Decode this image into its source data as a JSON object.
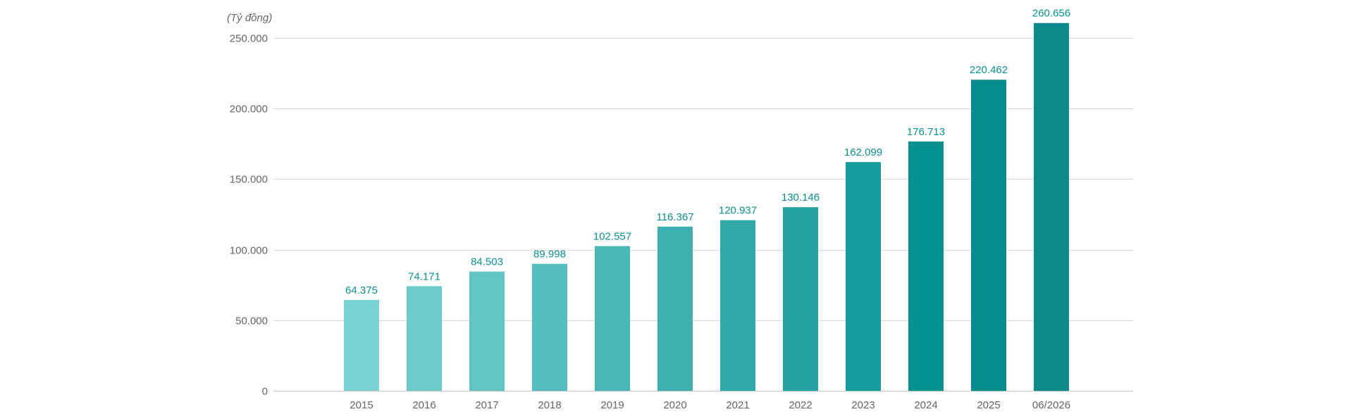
{
  "chart_data": {
    "type": "bar",
    "unit_label": "(Tỷ đồng)",
    "categories": [
      "2015",
      "2016",
      "2017",
      "2018",
      "2019",
      "2020",
      "2021",
      "2022",
      "2023",
      "2024",
      "2025",
      "06/2026"
    ],
    "values": [
      64375,
      74171,
      84503,
      89998,
      102557,
      116367,
      120937,
      130146,
      162099,
      176713,
      220462,
      260656
    ],
    "data_labels": [
      "64.375",
      "74.171",
      "84.503",
      "89.998",
      "102.557",
      "116.367",
      "120.937",
      "130.146",
      "162.099",
      "176.713",
      "220.462",
      "260.656"
    ],
    "yticks": [
      0,
      50000,
      100000,
      150000,
      200000,
      250000
    ],
    "ytick_labels": [
      "0",
      "50.000",
      "100.000",
      "150.000",
      "200.000",
      "250.000"
    ],
    "ylim": [
      0,
      262000
    ],
    "grid": true,
    "legend": "none",
    "colors": {
      "bars": [
        "#7ad1d1",
        "#6ecbcb",
        "#62c4c4",
        "#55bdbd",
        "#4ab7b7",
        "#3eb0b0",
        "#30a9a9",
        "#22a2a2",
        "#169c9c",
        "#029090",
        "#058d8d",
        "#0a8a8a"
      ],
      "data_label": "#0b8f8f",
      "grid": "#d9d9d9",
      "tick_text": "#666666"
    }
  }
}
